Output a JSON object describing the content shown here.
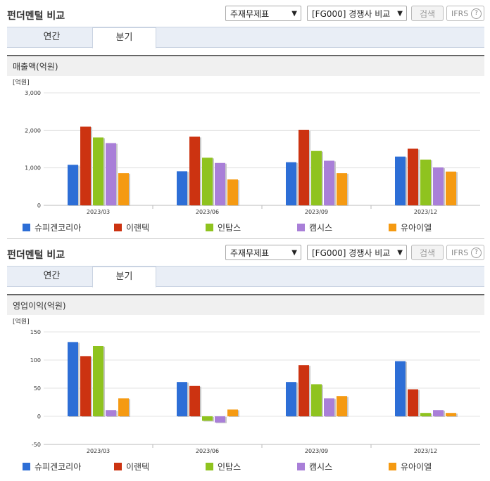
{
  "sections": [
    {
      "title": "펀더멘털 비교",
      "select1": "주재무제표",
      "select2": "[FG000] 경쟁사 비교",
      "search_label": "검색",
      "ifrs_label": "IFRS",
      "tabs": [
        "연간",
        "분기"
      ],
      "active_tab": 1,
      "box_title": "매출액(억원)",
      "unit_label": "[억원]"
    },
    {
      "title": "펀더멘털 비교",
      "select1": "주재무제표",
      "select2": "[FG000] 경쟁사 비교",
      "search_label": "검색",
      "ifrs_label": "IFRS",
      "tabs": [
        "연간",
        "분기"
      ],
      "active_tab": 1,
      "box_title": "영업이익(억원)",
      "unit_label": "[억원]"
    }
  ],
  "colors": {
    "슈피겐코리아": "#2d6ed6",
    "이랜텍": "#cc3311",
    "인탑스": "#8fc31f",
    "캠시스": "#a97fd8",
    "유아이엘": "#f59a12"
  },
  "chart_data": [
    {
      "type": "bar",
      "title": "매출액(억원)",
      "categories": [
        "2023/03",
        "2023/06",
        "2023/09",
        "2023/12"
      ],
      "ylim": [
        0,
        3000
      ],
      "yticks": [
        0,
        1000,
        2000,
        3000
      ],
      "ytick_labels": [
        "0",
        "1,000",
        "2,000",
        "3,000"
      ],
      "grid": true,
      "legend": "bottom",
      "series": [
        {
          "name": "슈피겐코리아",
          "values": [
            1080,
            910,
            1150,
            1300
          ]
        },
        {
          "name": "이랜텍",
          "values": [
            2100,
            1830,
            2010,
            1510
          ]
        },
        {
          "name": "인탑스",
          "values": [
            1810,
            1270,
            1450,
            1220
          ]
        },
        {
          "name": "캠시스",
          "values": [
            1660,
            1130,
            1190,
            1010
          ]
        },
        {
          "name": "유아이엘",
          "values": [
            860,
            690,
            860,
            900
          ]
        }
      ]
    },
    {
      "type": "bar",
      "title": "영업이익(억원)",
      "categories": [
        "2023/03",
        "2023/06",
        "2023/09",
        "2023/12"
      ],
      "ylim": [
        -50,
        150
      ],
      "yticks": [
        -50,
        0,
        50,
        100,
        150
      ],
      "ytick_labels": [
        "-50",
        "0",
        "50",
        "100",
        "150"
      ],
      "grid": true,
      "legend": "bottom",
      "series": [
        {
          "name": "슈피겐코리아",
          "values": [
            132,
            61,
            61,
            98
          ]
        },
        {
          "name": "이랜텍",
          "values": [
            107,
            54,
            91,
            48
          ]
        },
        {
          "name": "인탑스",
          "values": [
            125,
            -8,
            57,
            6
          ]
        },
        {
          "name": "캠시스",
          "values": [
            11,
            -11,
            32,
            11
          ]
        },
        {
          "name": "유아이엘",
          "values": [
            32,
            12,
            36,
            6
          ]
        }
      ]
    }
  ]
}
